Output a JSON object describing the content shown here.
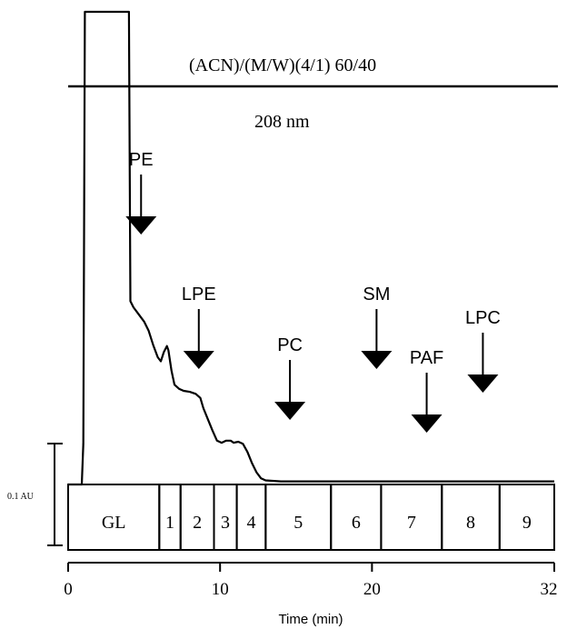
{
  "chart_data": {
    "type": "line",
    "title": "",
    "xlabel": "Time (min)",
    "ylabel": "",
    "xlim": [
      0,
      32
    ],
    "x_ticks": [
      {
        "value": 0,
        "label": "0"
      },
      {
        "value": 10,
        "label": "10"
      },
      {
        "value": 20,
        "label": "20"
      },
      {
        "value": 32,
        "label": "32"
      }
    ],
    "annotations": {
      "solvent": "(ACN)/(M/W)(4/1)  60/40",
      "wavelength": "208 nm",
      "scale_bar": "0.1 AU"
    },
    "scale_bar_value_au": 0.1,
    "chromatogram": {
      "x": [
        0,
        0.9,
        1.0,
        1.1,
        4.0,
        4.1,
        4.3,
        4.6,
        5.0,
        5.3,
        5.6,
        5.9,
        6.1,
        6.3,
        6.5,
        6.6,
        6.8,
        7.0,
        7.3,
        7.6,
        8.0,
        8.4,
        8.7,
        8.9,
        9.2,
        9.5,
        9.8,
        10.1,
        10.4,
        10.7,
        10.9,
        11.2,
        11.5,
        11.8,
        12.1,
        12.4,
        12.7,
        13.0,
        14.0,
        16.0,
        20.0,
        24.0,
        28.0,
        32.0
      ],
      "y": [
        0,
        0,
        0.04,
        0.53,
        0.53,
        0.18,
        0.174,
        0.168,
        0.16,
        0.151,
        0.137,
        0.125,
        0.121,
        0.13,
        0.136,
        0.132,
        0.112,
        0.098,
        0.094,
        0.092,
        0.091,
        0.089,
        0.085,
        0.075,
        0.064,
        0.053,
        0.043,
        0.041,
        0.043,
        0.043,
        0.041,
        0.042,
        0.04,
        0.032,
        0.021,
        0.012,
        0.006,
        0.004,
        0.003,
        0.003,
        0.003,
        0.003,
        0.003,
        0.003
      ]
    },
    "elution_markers": [
      {
        "label": "PE",
        "x": 4.8
      },
      {
        "label": "LPE",
        "x": 8.6
      },
      {
        "label": "PC",
        "x": 14.6
      },
      {
        "label": "SM",
        "x": 20.3
      },
      {
        "label": "PAF",
        "x": 23.6
      },
      {
        "label": "LPC",
        "x": 27.3
      }
    ],
    "fractions": [
      {
        "label": "GL",
        "start": 0,
        "end": 6.0
      },
      {
        "label": "1",
        "start": 6.0,
        "end": 7.4
      },
      {
        "label": "2",
        "start": 7.4,
        "end": 9.6
      },
      {
        "label": "3",
        "start": 9.6,
        "end": 11.1
      },
      {
        "label": "4",
        "start": 11.1,
        "end": 13.0
      },
      {
        "label": "5",
        "start": 13.0,
        "end": 17.3
      },
      {
        "label": "6",
        "start": 17.3,
        "end": 20.6
      },
      {
        "label": "7",
        "start": 20.6,
        "end": 24.6
      },
      {
        "label": "8",
        "start": 24.6,
        "end": 28.4
      },
      {
        "label": "9",
        "start": 28.4,
        "end": 32.0
      }
    ]
  }
}
